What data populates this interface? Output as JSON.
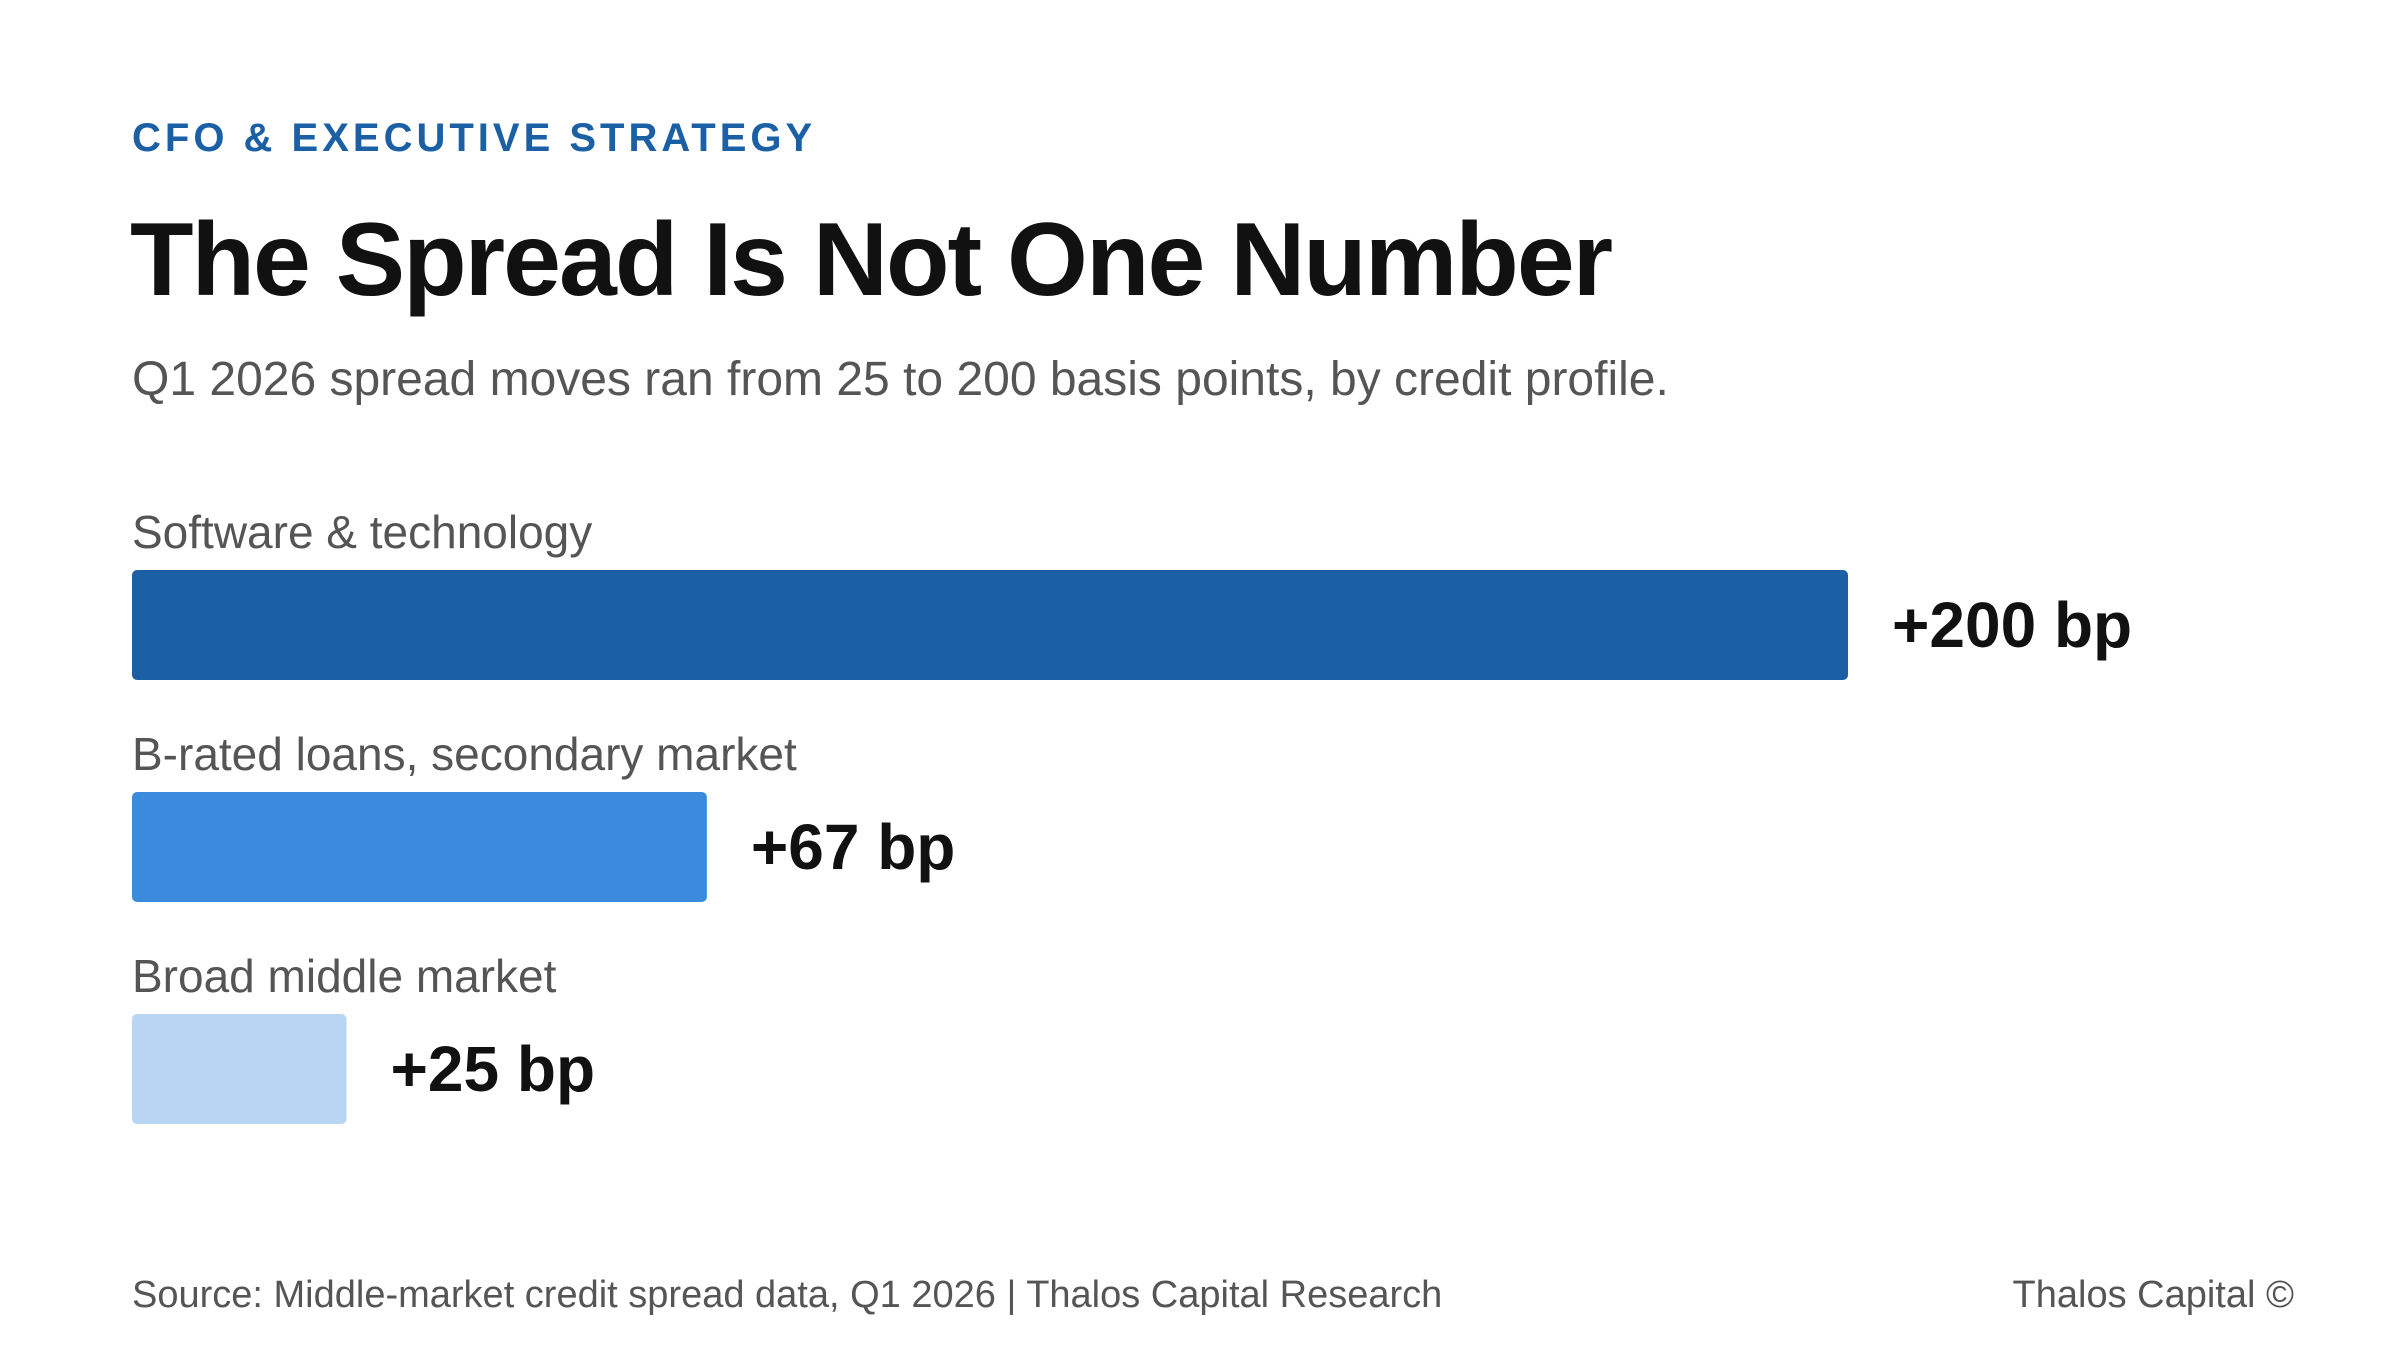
{
  "header": {
    "eyebrow": "CFO & EXECUTIVE STRATEGY",
    "title": "The Spread Is Not One Number",
    "subtitle": "Q1 2026 spread moves ran from 25 to 200 basis points, by credit profile."
  },
  "chart_data": {
    "type": "bar",
    "orientation": "horizontal",
    "title": "",
    "xlabel": "",
    "ylabel": "",
    "unit": "bp",
    "xlim": [
      0,
      200
    ],
    "grid": false,
    "legend": "none",
    "categories": [
      "Software & technology",
      "B-rated loans, secondary market",
      "Broad middle market"
    ],
    "values": [
      200,
      67,
      25
    ],
    "value_labels": [
      "+200 bp",
      "+67 bp",
      "+25 bp"
    ],
    "colors": [
      "#1b5fa5",
      "#3a8ade",
      "#b8d5f3"
    ]
  },
  "footer": {
    "source": "Source: Middle-market credit spread data, Q1 2026 | Thalos Capital Research",
    "brand": "Thalos Capital ©"
  }
}
